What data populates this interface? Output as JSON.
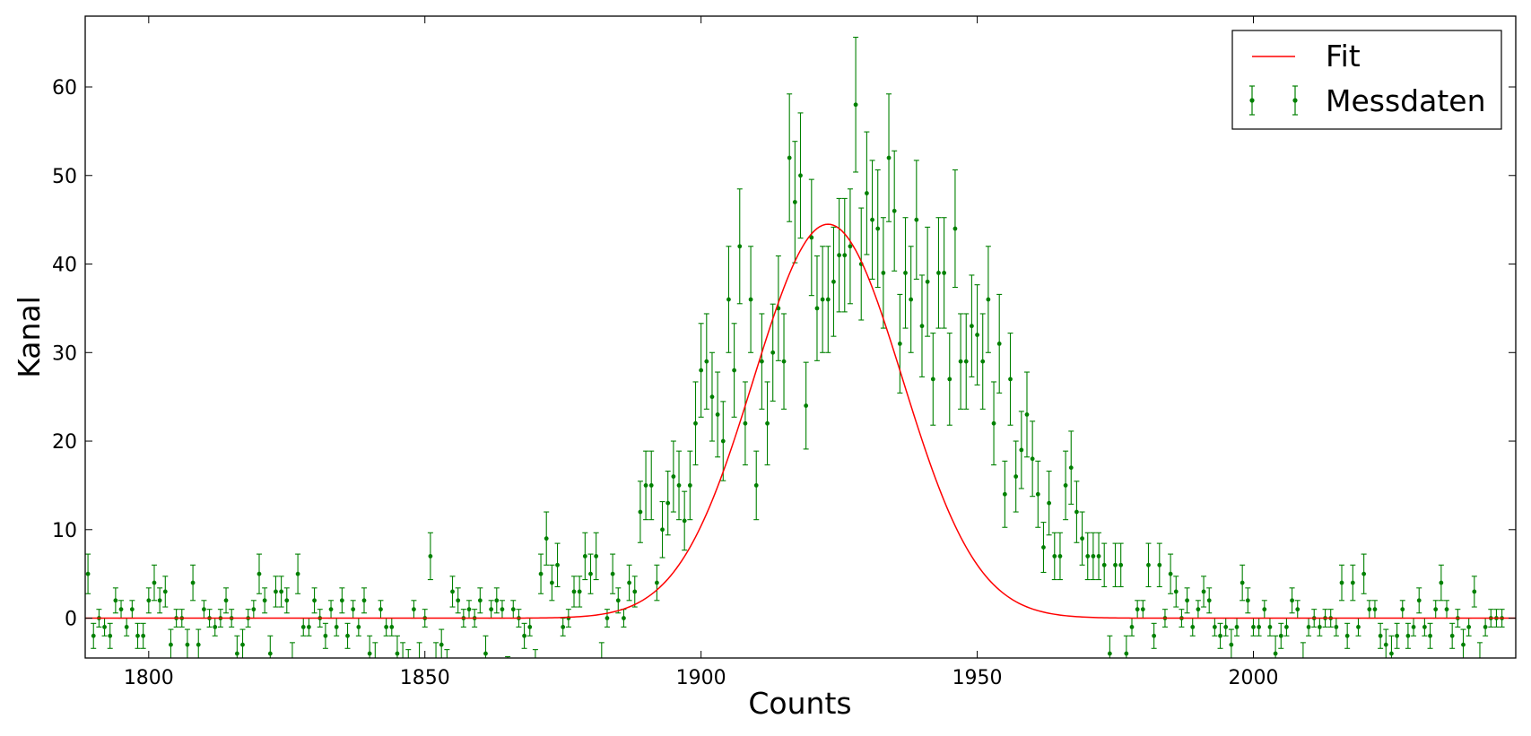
{
  "chart_data": {
    "type": "scatter",
    "xlabel": "Counts",
    "ylabel": "Kanal",
    "xlim": [
      1788.5,
      2047.5
    ],
    "ylim": [
      -4.5,
      68
    ],
    "xticks": [
      1800,
      1850,
      1900,
      1950,
      2000
    ],
    "yticks": [
      0,
      10,
      20,
      30,
      40,
      50,
      60
    ],
    "grid": false,
    "legend_position": "top-right",
    "colors": {
      "fit": "#ff0000",
      "data": "#008000"
    },
    "series": [
      {
        "name": "Messdaten",
        "kind": "errorbar",
        "x_start": 1789,
        "x_step": 1,
        "y": [
          5,
          -2,
          0,
          -1,
          -2,
          2,
          1,
          -1,
          1,
          -2,
          -2,
          2,
          4,
          2,
          3,
          -3,
          0,
          0,
          -3,
          4,
          -3,
          1,
          0,
          -1,
          0,
          2,
          0,
          -4,
          -3,
          0,
          1,
          5,
          2,
          -4,
          3,
          3,
          2,
          -5,
          5,
          -1,
          -1,
          2,
          0,
          -2,
          1,
          -1,
          2,
          -2,
          1,
          -1,
          2,
          -4,
          -5,
          1,
          -1,
          -1,
          -4,
          -5,
          -6,
          1,
          -5,
          0,
          7,
          -5,
          -3,
          -6,
          3,
          2,
          0,
          1,
          0,
          2,
          -4,
          1,
          2,
          1,
          -7,
          1,
          0,
          -2,
          -1,
          -6,
          5,
          9,
          4,
          6,
          -1,
          0,
          3,
          3,
          7,
          5,
          7,
          -5,
          0,
          5,
          2,
          0,
          4,
          3,
          12,
          15,
          15,
          4,
          10,
          13,
          16,
          15,
          11,
          15,
          22,
          28,
          29,
          25,
          23,
          20,
          36,
          28,
          42,
          22,
          36,
          15,
          29,
          22,
          30,
          35,
          29,
          52,
          47,
          50,
          24,
          43,
          35,
          36,
          36,
          38,
          41,
          41,
          42,
          58,
          40,
          48,
          45,
          44,
          39,
          52,
          46,
          31,
          39,
          36,
          45,
          33,
          38,
          27,
          39,
          39,
          27,
          44,
          29,
          29,
          33,
          32,
          29,
          36,
          22,
          31,
          14,
          27,
          16,
          19,
          23,
          18,
          14,
          8,
          13,
          7,
          7,
          15,
          17,
          12,
          9,
          7,
          7,
          7,
          6,
          -4,
          6,
          6,
          -4,
          -1,
          1,
          1,
          6,
          -2,
          6,
          0,
          5,
          3,
          0,
          2,
          -1,
          1,
          3,
          2,
          -1,
          -2,
          -1,
          -3,
          -1,
          4,
          2,
          -1,
          -1,
          1,
          -1,
          -4,
          -2,
          -1,
          2,
          1,
          -5,
          -1,
          0,
          -1,
          0,
          0,
          -1,
          4,
          -2,
          4,
          -1,
          5,
          1,
          1,
          -2,
          -3,
          -4,
          -2,
          1,
          -2,
          -1,
          2,
          -1,
          -2,
          1,
          4,
          1,
          -2,
          0,
          -3,
          -1,
          3,
          -5,
          -1,
          0,
          0,
          0
        ]
      },
      {
        "name": "Fit",
        "kind": "line",
        "model": "gaussian",
        "amplitude": 44.5,
        "center": 1923,
        "sigma": 13.5,
        "offset": 0
      }
    ]
  }
}
